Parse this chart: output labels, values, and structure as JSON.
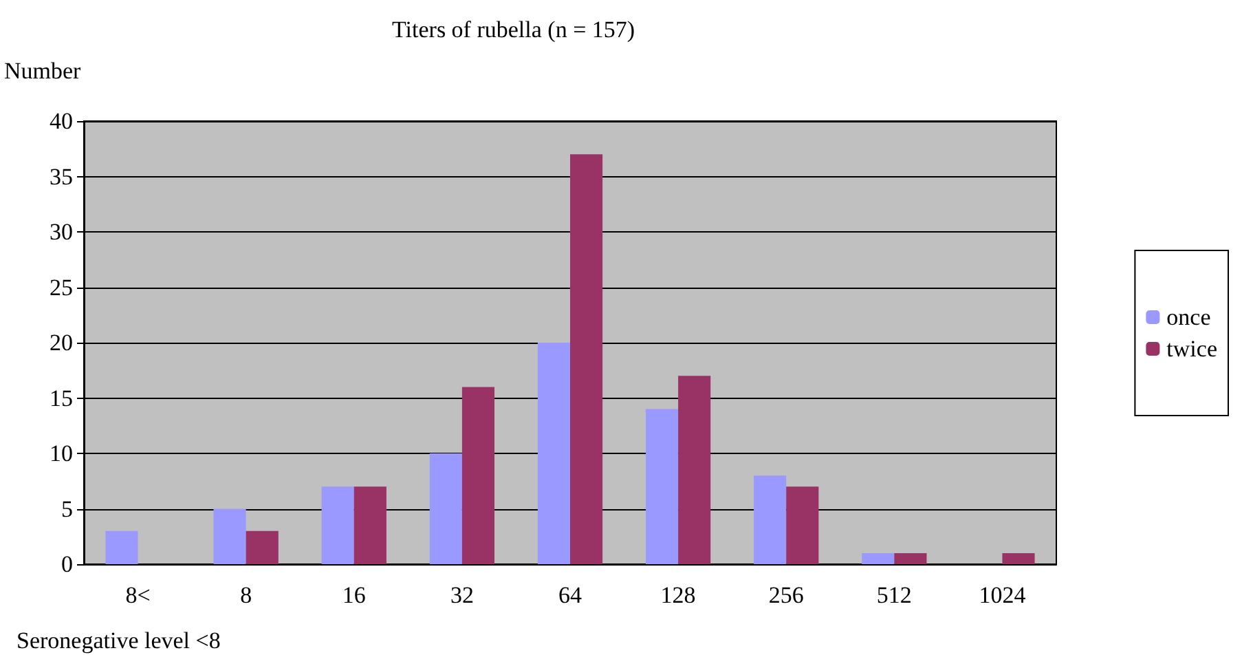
{
  "chart_data": {
    "type": "bar",
    "title": "Titers of rubella (n = 157)",
    "ylabel": "Number",
    "categories": [
      "8<",
      "8",
      "16",
      "32",
      "64",
      "128",
      "256",
      "512",
      "1024"
    ],
    "series": [
      {
        "name": "once",
        "color": "#9999ff",
        "values": [
          3,
          5,
          7,
          10,
          20,
          14,
          8,
          1,
          0
        ]
      },
      {
        "name": "twice",
        "color": "#993366",
        "values": [
          0,
          3,
          7,
          16,
          37,
          17,
          7,
          1,
          1
        ]
      }
    ],
    "ylim": [
      0,
      40
    ],
    "yticks": [
      0,
      5,
      10,
      15,
      20,
      25,
      30,
      35,
      40
    ],
    "grid": "y",
    "legend": "right",
    "annotations": [
      "Seronegative level <8"
    ]
  }
}
